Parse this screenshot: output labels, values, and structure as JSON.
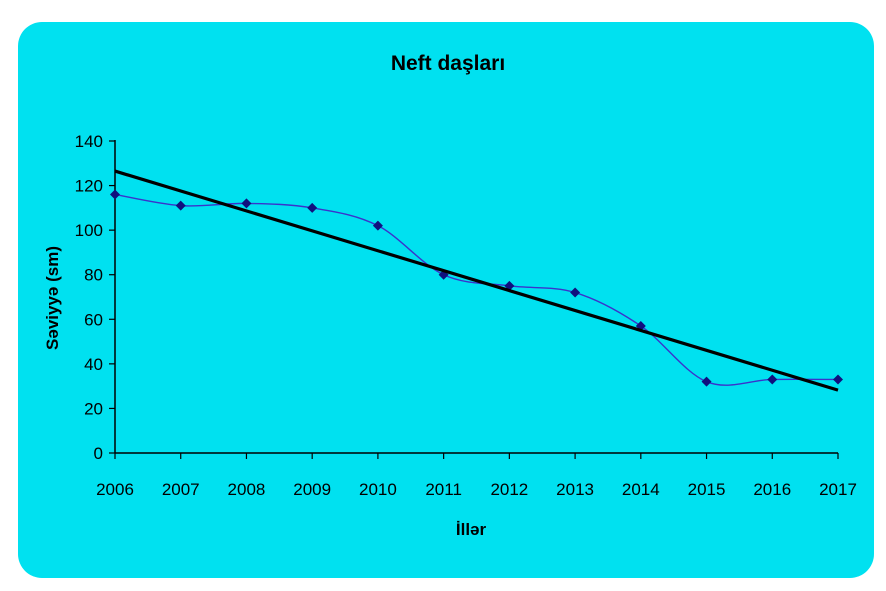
{
  "chart_data": {
    "type": "line",
    "title": "Neft daşları",
    "xlabel": "İllər",
    "ylabel": "Səviyyə (sm)",
    "x": [
      "2006",
      "2007",
      "2008",
      "2009",
      "2010",
      "2011",
      "2012",
      "2013",
      "2014",
      "2015",
      "2016",
      "2017"
    ],
    "ylim": [
      0,
      140
    ],
    "yticks": [
      "0",
      "20",
      "40",
      "60",
      "80",
      "100",
      "120",
      "140"
    ],
    "grid": false,
    "legend": "none",
    "series": [
      {
        "values": [
          116,
          111,
          112,
          110,
          102,
          80,
          75,
          72,
          57,
          32,
          33,
          33
        ],
        "color": "#3a33cc",
        "marker_color": "#10107e",
        "smooth": true
      },
      {
        "values": [
          126.5,
          117.6,
          108.6,
          99.7,
          90.7,
          81.8,
          72.9,
          63.9,
          55.0,
          46.0,
          37.1,
          28.2
        ],
        "color": "#000000",
        "trend": true
      }
    ]
  },
  "colors": {
    "background": "#00e1f0",
    "axis": "#000000"
  }
}
